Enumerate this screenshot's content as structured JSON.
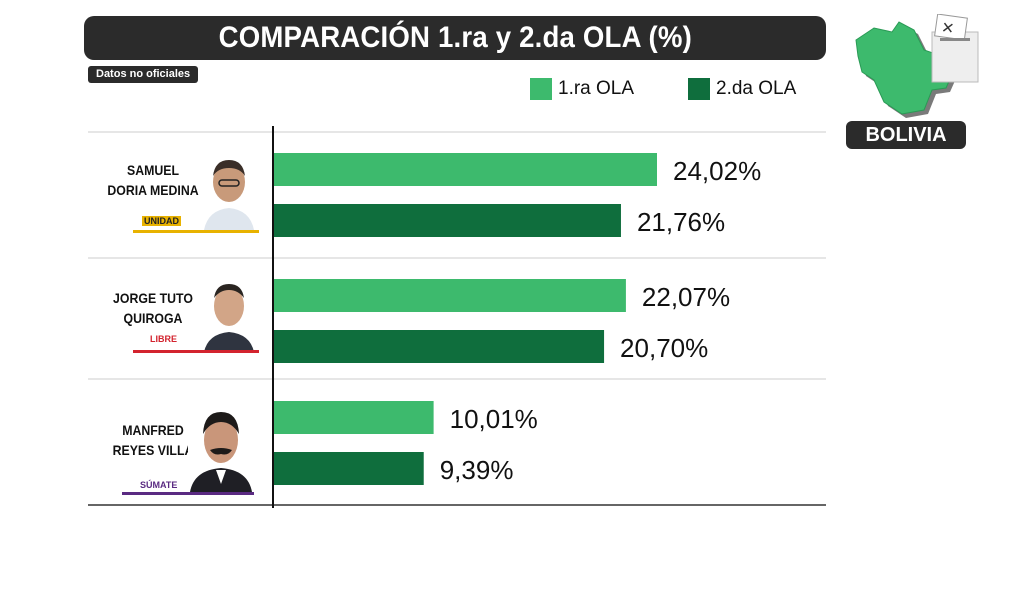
{
  "title": "COMPARACIÓN 1.ra y 2.da OLA (%)",
  "note": "Datos no oficiales",
  "badge": "BOLIVIA",
  "colors": {
    "first_wave": "#3dba6d",
    "second_wave": "#0f6e3d",
    "title_bg": "#2b2b2b"
  },
  "icons": [
    "bolivia-map-icon",
    "ballot-box-icon",
    "candidate-photo",
    "party-logo"
  ],
  "candidates": [
    {
      "name_line1": "SAMUEL",
      "name_line2": "DORIA MEDINA",
      "party": "UNIDAD",
      "party_color": "#e8b200"
    },
    {
      "name_line1": "JORGE TUTO",
      "name_line2": "QUIROGA",
      "party": "LIBRE",
      "party_color": "#d3232e"
    },
    {
      "name_line1": "MANFRED",
      "name_line2": "REYES VILLA",
      "party": "SÚMATE",
      "party_color": "#5a2a82"
    }
  ],
  "chart_data": {
    "type": "bar",
    "orientation": "horizontal",
    "categories": [
      "SAMUEL DORIA MEDINA",
      "JORGE TUTO QUIROGA",
      "MANFRED REYES VILLA"
    ],
    "series": [
      {
        "name": "1.ra OLA",
        "values": [
          24.02,
          22.07,
          10.01
        ],
        "labels": [
          "24,02%",
          "22,07%",
          "10,01%"
        ]
      },
      {
        "name": "2.da OLA",
        "values": [
          21.76,
          20.7,
          9.39
        ],
        "labels": [
          "21,76%",
          "20,70%",
          "9,39%"
        ]
      }
    ],
    "legend_position": "top-right",
    "unit": "%"
  }
}
